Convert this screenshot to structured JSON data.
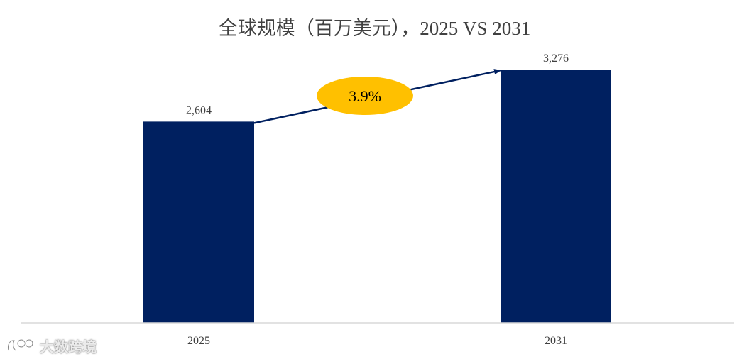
{
  "chart_data": {
    "type": "bar",
    "title": "全球规模（百万美元），2025 VS 2031",
    "categories": [
      "2025",
      "2031"
    ],
    "values": [
      2604,
      3276
    ],
    "value_labels": [
      "2,604",
      "3,276"
    ],
    "ylim": [
      0,
      3700
    ],
    "grid": false,
    "legend": "none",
    "annotation": {
      "label": "3.9%",
      "from": "2025",
      "to": "2031"
    },
    "colors": {
      "bar": "#002060",
      "annotation_fill": "#FFC000",
      "arrow": "#002060",
      "axis": "#d9d9d9"
    }
  },
  "watermark": {
    "text": "大数跨境",
    "icon": "brand-logo-icon"
  }
}
